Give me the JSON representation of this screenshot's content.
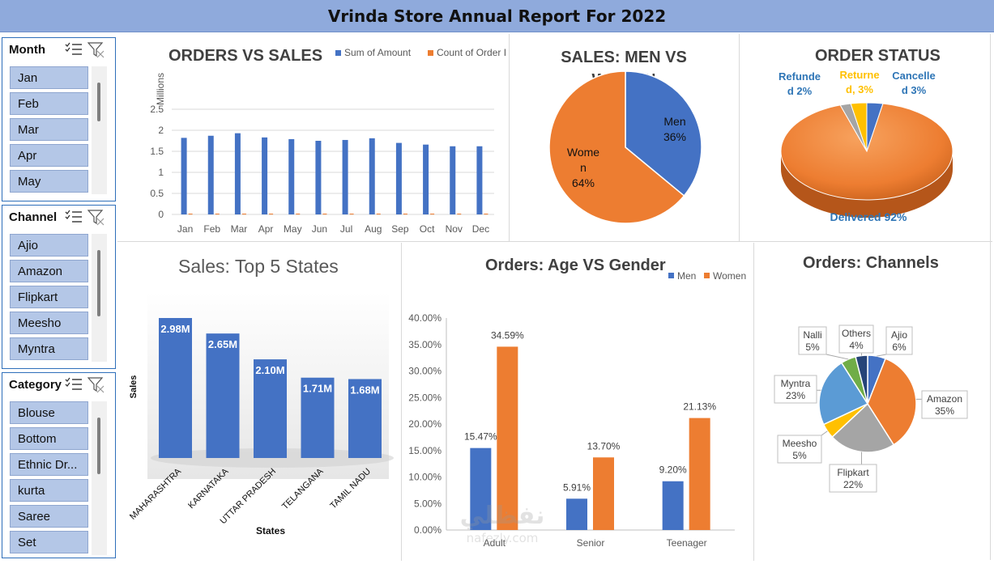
{
  "report_title": "Vrinda Store Annual Report For 2022",
  "slicers": {
    "month": {
      "title": "Month",
      "items": [
        "Jan",
        "Feb",
        "Mar",
        "Apr",
        "May"
      ]
    },
    "channel": {
      "title": "Channel",
      "items": [
        "Ajio",
        "Amazon",
        "Flipkart",
        "Meesho",
        "Myntra"
      ]
    },
    "category": {
      "title": "Category",
      "items": [
        "Blouse",
        "Bottom",
        "Ethnic Dr...",
        "kurta",
        "Saree",
        "Set"
      ]
    }
  },
  "chart_data": [
    {
      "type": "bar",
      "title": "ORDERS VS SALES",
      "y_unit_label": "Millions",
      "categories": [
        "Jan",
        "Feb",
        "Mar",
        "Apr",
        "May",
        "Jun",
        "Jul",
        "Aug",
        "Sep",
        "Oct",
        "Nov",
        "Dec"
      ],
      "series": [
        {
          "name": "Sum of Amount",
          "color": "#4472c4",
          "values": [
            1.82,
            1.87,
            1.93,
            1.83,
            1.79,
            1.75,
            1.77,
            1.81,
            1.7,
            1.66,
            1.62,
            1.62
          ]
        },
        {
          "name": "Count of Order ID",
          "color": "#ed7d31",
          "values": [
            0.0025,
            0.0025,
            0.0026,
            0.0025,
            0.0024,
            0.0023,
            0.0024,
            0.0024,
            0.0023,
            0.0022,
            0.0022,
            0.0022
          ]
        }
      ],
      "ylim": [
        0,
        2.5
      ],
      "y_ticks": [
        "0",
        "0.5",
        "1",
        "1.5",
        "2",
        "2.5"
      ],
      "legend": "top-right",
      "grid": true
    },
    {
      "type": "pie",
      "title": "SALES: MEN VS WOMEN",
      "slices": [
        {
          "label": "Men",
          "value": 36,
          "text": "36%",
          "color": "#4472c4"
        },
        {
          "label": "Women",
          "value": 64,
          "text": "64%",
          "color": "#ed7d31",
          "label_lines": [
            "Wome",
            "n"
          ]
        }
      ]
    },
    {
      "type": "pie",
      "title": "ORDER STATUS",
      "slices": [
        {
          "label": "Delivered",
          "value": 92,
          "text": "Delivered 92%",
          "color": "#ed7d31"
        },
        {
          "label": "Refunded",
          "value": 2,
          "text_lines": [
            "Refunde",
            "d 2%"
          ],
          "color": "#a5a5a5"
        },
        {
          "label": "Returned",
          "value": 3,
          "text_lines": [
            "Returne",
            "d, 3%"
          ],
          "color": "#ffc000"
        },
        {
          "label": "Cancelled",
          "value": 3,
          "text_lines": [
            "Cancelle",
            "d 3%"
          ],
          "color": "#4472c4"
        }
      ]
    },
    {
      "type": "bar",
      "title": "Sales: Top 5 States",
      "xlabel": "States",
      "ylabel": "Sales",
      "categories": [
        "MAHARASHTRA",
        "KARNATAKA",
        "UTTAR PRADESH",
        "TELANGANA",
        "TAMIL NADU"
      ],
      "values": [
        2.98,
        2.65,
        2.1,
        1.71,
        1.68
      ],
      "data_labels": [
        "2.98M",
        "2.65M",
        "2.10M",
        "1.71M",
        "1.68M"
      ],
      "color": "#4472c4",
      "grid": false
    },
    {
      "type": "bar",
      "title": "Orders: Age VS Gender",
      "categories": [
        "Adult",
        "Senior",
        "Teenager"
      ],
      "series": [
        {
          "name": "Men",
          "color": "#4472c4",
          "values": [
            15.47,
            5.91,
            9.2
          ],
          "labels": [
            "15.47%",
            "5.91%",
            "9.20%"
          ]
        },
        {
          "name": "Women",
          "color": "#ed7d31",
          "values": [
            34.59,
            13.7,
            21.13
          ],
          "labels": [
            "34.59%",
            "13.70%",
            "21.13%"
          ]
        }
      ],
      "ylim": [
        0,
        40
      ],
      "y_ticks": [
        "0.00%",
        "5.00%",
        "10.00%",
        "15.00%",
        "20.00%",
        "25.00%",
        "30.00%",
        "35.00%",
        "40.00%"
      ],
      "legend": "top-right",
      "grid": false
    },
    {
      "type": "pie",
      "title": "Orders: Channels",
      "slices": [
        {
          "label": "Ajio",
          "value": 6,
          "text": "6%",
          "color": "#4472c4"
        },
        {
          "label": "Amazon",
          "value": 35,
          "text": "35%",
          "color": "#ed7d31"
        },
        {
          "label": "Flipkart",
          "value": 22,
          "text": "22%",
          "color": "#a5a5a5"
        },
        {
          "label": "Meesho",
          "value": 5,
          "text": "5%",
          "color": "#ffc000"
        },
        {
          "label": "Myntra",
          "value": 23,
          "text": "23%",
          "color": "#5b9bd5"
        },
        {
          "label": "Nalli",
          "value": 5,
          "text": "5%",
          "color": "#70ad47"
        },
        {
          "label": "Others",
          "value": 4,
          "text": "4%",
          "color": "#264478"
        }
      ]
    }
  ],
  "watermark": {
    "arabic": "نفظلي",
    "latin": "nafezly.com"
  }
}
